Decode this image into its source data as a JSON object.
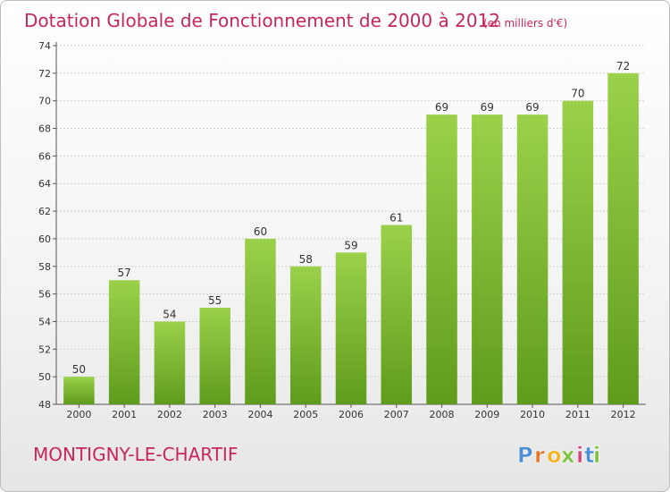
{
  "chart_data": {
    "type": "bar",
    "title": "Dotation Globale de Fonctionnement de 2000 à 2012",
    "subtitle": "(en milliers d'€)",
    "categories": [
      "2000",
      "2001",
      "2002",
      "2003",
      "2004",
      "2005",
      "2006",
      "2007",
      "2008",
      "2009",
      "2010",
      "2011",
      "2012"
    ],
    "values": [
      50,
      57,
      54,
      55,
      60,
      58,
      59,
      61,
      69,
      69,
      69,
      70,
      72
    ],
    "ylim": [
      48,
      74
    ],
    "yticks": [
      48,
      50,
      52,
      54,
      56,
      58,
      60,
      62,
      64,
      66,
      68,
      70,
      72,
      74
    ],
    "grid": true,
    "bar_color": "#8cc63f",
    "bar_color_dark": "#5e9a1a",
    "title_color": "#c8265a"
  },
  "commune": "MONTIGNY-LE-CHARTIF",
  "logo": {
    "letters": [
      "P",
      "r",
      "o",
      "x",
      "i",
      "t",
      "i"
    ],
    "colors": [
      "#4a8fd4",
      "#e8762a",
      "#f2b21b",
      "#7bbf3a",
      "#d8407a",
      "#4a8fd4",
      "#7bbf3a"
    ]
  }
}
